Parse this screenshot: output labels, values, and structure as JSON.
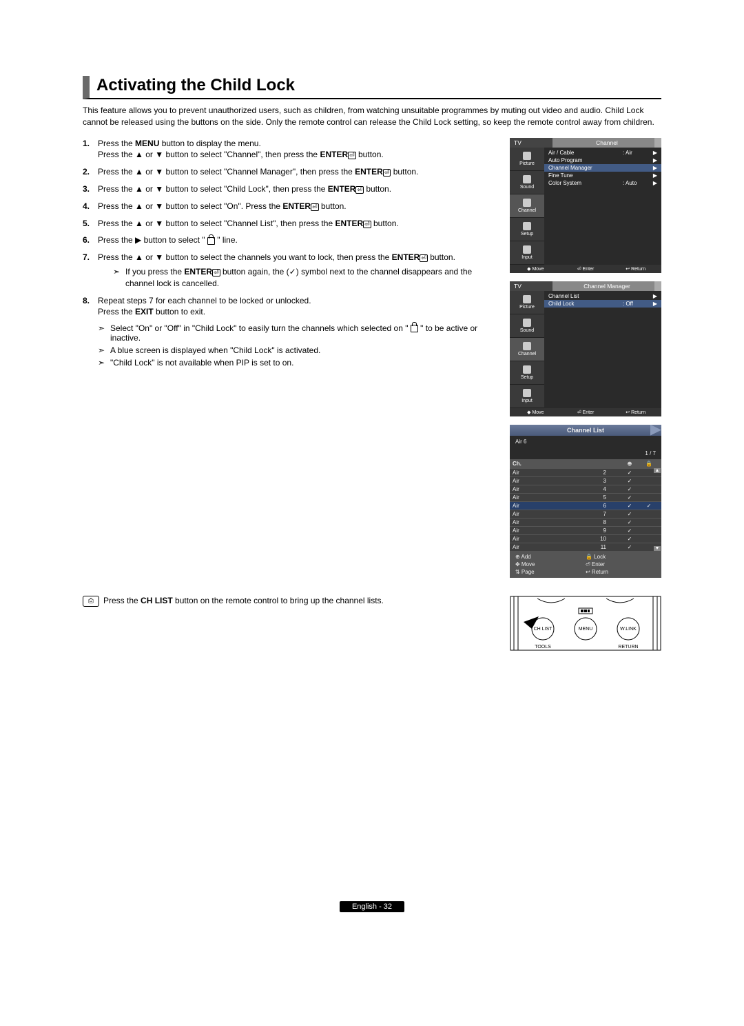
{
  "title": "Activating the Child Lock",
  "intro": "This feature allows you to prevent unauthorized users, such as children, from watching unsuitable programmes by muting out video and audio. Child Lock cannot be released using the buttons on the side. Only the remote control can release the Child Lock setting, so keep the remote control away from children.",
  "steps": [
    {
      "n": "1.",
      "html": "Press the <b>MENU</b> button to display the menu.<br>Press the ▲ or ▼ button to   select \"Channel\", then press the <b>ENTER</b><span class='enter-sym'>⏎</span> button."
    },
    {
      "n": "2.",
      "html": "Press the ▲ or ▼ button to select \"Channel Manager\", then press the <b>ENTER</b><span class='enter-sym'>⏎</span> button."
    },
    {
      "n": "3.",
      "html": "Press the ▲ or ▼ button to select \"Child Lock\", then press the <b>ENTER</b><span class='enter-sym'>⏎</span> button."
    },
    {
      "n": "4.",
      "html": "Press the ▲ or ▼ button to select \"On\". Press the <b>ENTER</b><span class='enter-sym'>⏎</span> button."
    },
    {
      "n": "5.",
      "html": "Press the ▲ or ▼ button to select \"Channel List\", then press the <b>ENTER</b><span class='enter-sym'>⏎</span> button."
    },
    {
      "n": "6.",
      "html": "Press the ▶ button to select \" <span class='lockglyph'></span> \" line."
    },
    {
      "n": "7.",
      "html": "Press the ▲ or ▼ button to select the channels you want to lock, then press the <b>ENTER</b><span class='enter-sym'>⏎</span> button.",
      "sub": {
        "sym": "➣",
        "html": "If you press the <b>ENTER</b><span class='enter-sym'>⏎</span> button again, the (✓) symbol next to the channel disappears and the channel lock is cancelled."
      }
    },
    {
      "n": "8.",
      "html": "Repeat steps 7 for each channel to be locked or unlocked.<br>Press the <b>EXIT</b> button to exit."
    }
  ],
  "notes": [
    {
      "sym": "➣",
      "html": "Select \"On\" or \"Off\" in \"Child Lock\" to easily turn the channels which selected on \" <span class='lockglyph'></span> \" to be active or inactive."
    },
    {
      "sym": "➣",
      "html": "A blue screen is displayed when \"Child Lock\" is activated."
    },
    {
      "sym": "➣",
      "html": "\"Child Lock\" is not available when PIP is set to on."
    }
  ],
  "osd1": {
    "tv": "TV",
    "title": "Channel",
    "side": [
      "Picture",
      "Sound",
      "Channel",
      "Setup",
      "Input"
    ],
    "rows": [
      {
        "l": "Air / Cable",
        "v": ": Air",
        "arr": "▶"
      },
      {
        "l": "Auto Program",
        "v": "",
        "arr": "▶"
      },
      {
        "l": "Channel Manager",
        "v": "",
        "arr": "▶",
        "sel": true
      },
      {
        "l": "Fine Tune",
        "v": "",
        "arr": "▶"
      },
      {
        "l": "Color System",
        "v": ": Auto",
        "arr": "▶"
      }
    ],
    "foot": [
      "◆ Move",
      "⏎ Enter",
      "↩ Return"
    ]
  },
  "osd2": {
    "tv": "TV",
    "title": "Channel Manager",
    "side": [
      "Picture",
      "Sound",
      "Channel",
      "Setup",
      "Input"
    ],
    "rows": [
      {
        "l": "Channel List",
        "v": "",
        "arr": "▶"
      },
      {
        "l": "Child Lock",
        "v": ": Off",
        "arr": "▶",
        "sel": true
      }
    ],
    "foot": [
      "◆ Move",
      "⏎ Enter",
      "↩ Return"
    ]
  },
  "chlist": {
    "title": "Channel List",
    "sub_left": "Air   6",
    "sub_right": "1 / 7",
    "cols": {
      "c1": "Ch.",
      "c3": "⊕",
      "c4": "🔒"
    },
    "rows": [
      {
        "c1": "Air",
        "c2": "2",
        "c3": "✓",
        "c4": ""
      },
      {
        "c1": "Air",
        "c2": "3",
        "c3": "✓",
        "c4": ""
      },
      {
        "c1": "Air",
        "c2": "4",
        "c3": "✓",
        "c4": ""
      },
      {
        "c1": "Air",
        "c2": "5",
        "c3": "✓",
        "c4": ""
      },
      {
        "c1": "Air",
        "c2": "6",
        "c3": "✓",
        "c4": "✓",
        "sel": true
      },
      {
        "c1": "Air",
        "c2": "7",
        "c3": "✓",
        "c4": ""
      },
      {
        "c1": "Air",
        "c2": "8",
        "c3": "✓",
        "c4": ""
      },
      {
        "c1": "Air",
        "c2": "9",
        "c3": "✓",
        "c4": ""
      },
      {
        "c1": "Air",
        "c2": "10",
        "c3": "✓",
        "c4": ""
      },
      {
        "c1": "Air",
        "c2": "11",
        "c3": "✓",
        "c4": ""
      }
    ],
    "actions": [
      "⊕ Add",
      "🔒 Lock",
      "✥ Move",
      "⏎ Enter",
      "⇅ Page",
      "↩ Return"
    ]
  },
  "remote": {
    "icon": "⎙",
    "text": "Press the <b>CH LIST</b> button on the remote control to bring up the channel lists.",
    "btns": {
      "chlist": "CH LIST",
      "menu": "MENU",
      "wlink": "W.LINK",
      "tools": "TOOLS",
      "return": "RETURN"
    }
  },
  "footer": "English - 32"
}
